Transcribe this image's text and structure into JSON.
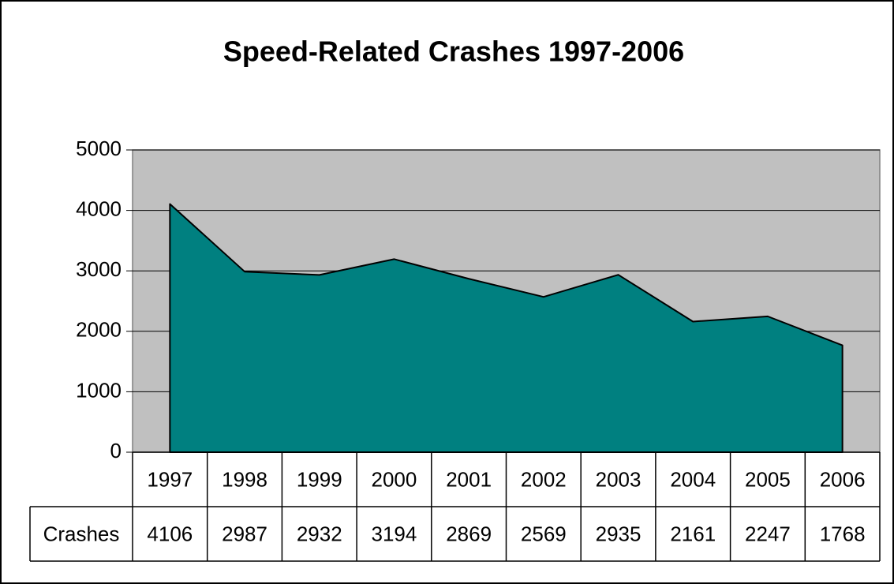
{
  "chart_data": {
    "type": "area",
    "title": "Speed-Related Crashes 1997-2006",
    "categories": [
      "1997",
      "1998",
      "1999",
      "2000",
      "2001",
      "2002",
      "2003",
      "2004",
      "2005",
      "2006"
    ],
    "series": [
      {
        "name": "Crashes",
        "color": "#008080",
        "values": [
          4106,
          2987,
          2932,
          3194,
          2869,
          2569,
          2935,
          2161,
          2247,
          1768
        ]
      }
    ],
    "ylim": [
      0,
      5000
    ],
    "yticks": [
      0,
      1000,
      2000,
      3000,
      4000,
      5000
    ],
    "grid": true,
    "plot_background": "#c0c0c0"
  }
}
